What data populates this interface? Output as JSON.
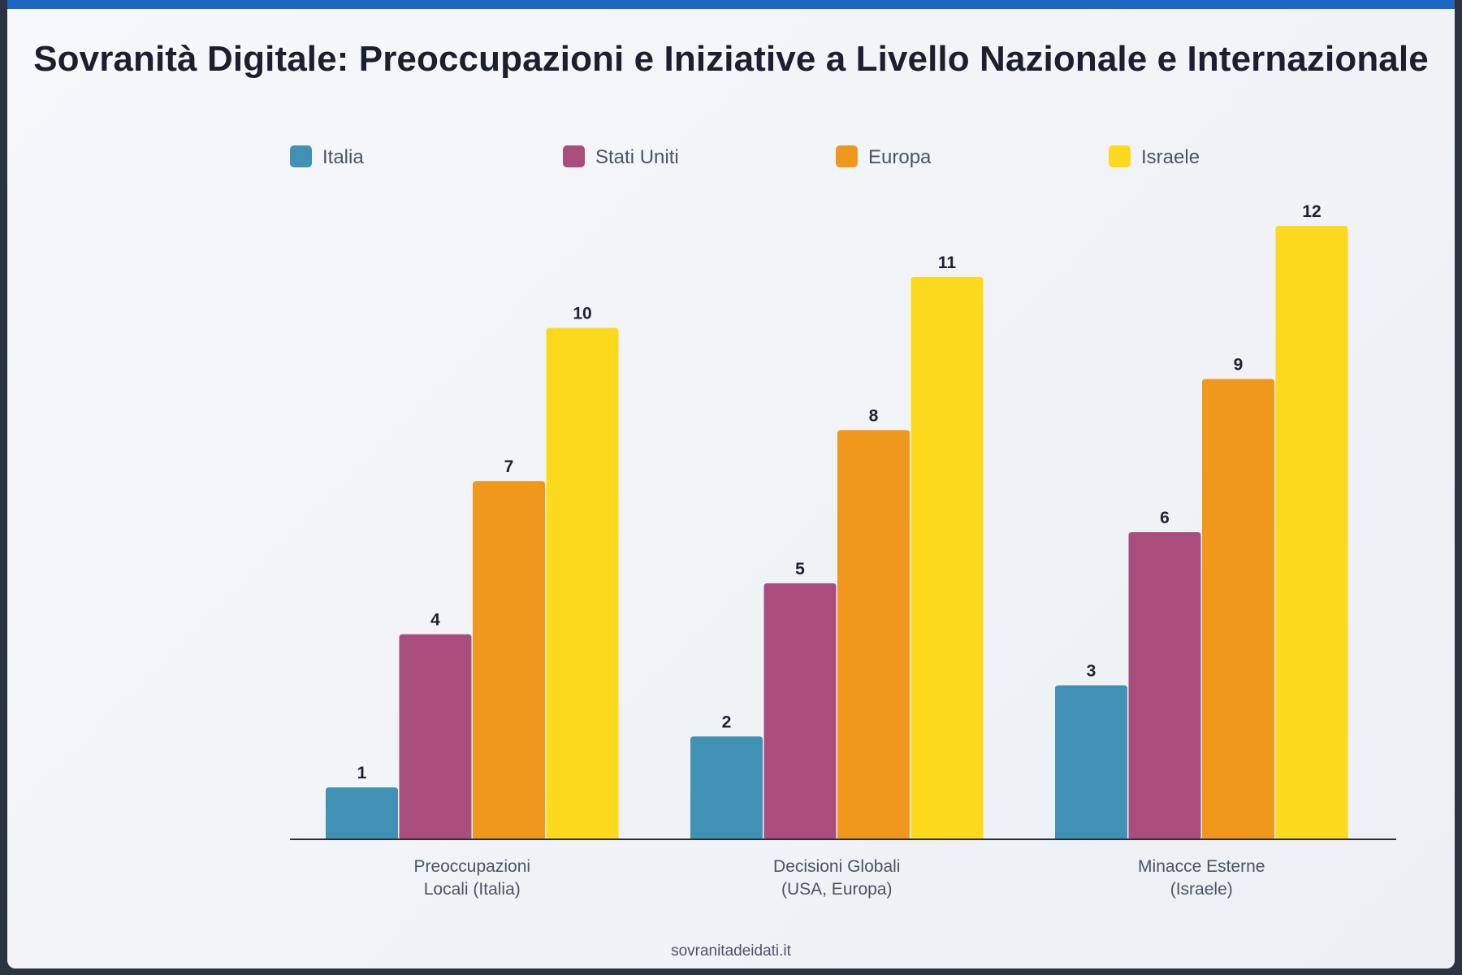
{
  "title": "Sovranità Digitale: Preoccupazioni e Iniziative a Livello Nazionale e Internazionale",
  "footer": "sovranitadeidati.it",
  "chart_data": {
    "type": "bar",
    "categories": [
      [
        "Preoccupazioni",
        "Locali (Italia)"
      ],
      [
        "Decisioni Globali",
        "(USA, Europa)"
      ],
      [
        "Minacce Esterne",
        "(Israele)"
      ]
    ],
    "series": [
      {
        "name": "Italia",
        "color": "#4191b4",
        "values": [
          1,
          2,
          3
        ]
      },
      {
        "name": "Stati Uniti",
        "color": "#a84d7c",
        "values": [
          4,
          5,
          6
        ]
      },
      {
        "name": "Europa",
        "color": "#ef981d",
        "values": [
          7,
          8,
          9
        ]
      },
      {
        "name": "Israele",
        "color": "#fdd91e",
        "values": [
          10,
          11,
          12
        ]
      }
    ],
    "ylim": [
      0,
      12
    ],
    "legend_position": "top",
    "grid": false,
    "xlabel": "",
    "ylabel": ""
  }
}
